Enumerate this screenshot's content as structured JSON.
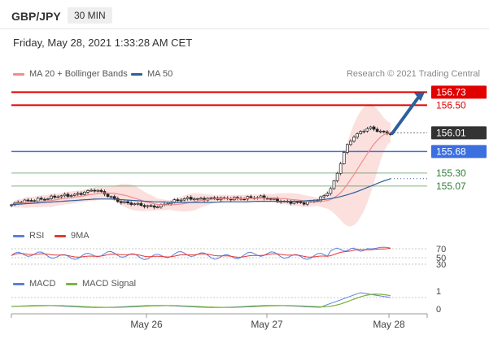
{
  "header": {
    "symbol": "GBP/JPY",
    "timeframe": "30 MIN",
    "datetime": "Friday, May 28, 2021 1:33:28 AM CET"
  },
  "legend": {
    "ma20": {
      "label": "MA 20 + Bollinger Bands",
      "color": "#f28c8c"
    },
    "ma50": {
      "label": "MA 50",
      "color": "#2d5f9e"
    }
  },
  "credit": "Research © 2021 Trading Central",
  "panels": {
    "rsi": {
      "legend": [
        {
          "label": "RSI",
          "color": "#5b7fdb"
        },
        {
          "label": "9MA",
          "color": "#e53935"
        }
      ],
      "levels": [
        "70",
        "50",
        "30"
      ]
    },
    "macd": {
      "legend": [
        {
          "label": "MACD",
          "color": "#5b7fdb"
        },
        {
          "label": "MACD Signal",
          "color": "#7cb342"
        }
      ],
      "levels": [
        "1",
        "0"
      ]
    }
  },
  "colors": {
    "resistance": "#e00000",
    "pivot": "#3b6fe0",
    "support": "#2e7d32",
    "arrow": "#2d5f9e",
    "current_price_bg": "#333333",
    "bands_fill": "#fadbd8"
  },
  "chart_data": {
    "type": "candlestick",
    "x_ticks": [
      "May 26",
      "May 27",
      "May 28"
    ],
    "ylim": [
      154.55,
      156.85
    ],
    "current_price": "156.01",
    "levels": [
      {
        "price": 156.73,
        "label": "156.73",
        "kind": "resistance",
        "highlight": true
      },
      {
        "price": 156.5,
        "label": "156.50",
        "kind": "resistance"
      },
      {
        "price": 155.68,
        "label": "155.68",
        "kind": "pivot",
        "highlight": true
      },
      {
        "price": 155.3,
        "label": "155.30",
        "kind": "support"
      },
      {
        "price": 155.07,
        "label": "155.07",
        "kind": "support"
      }
    ],
    "close_series": [
      154.73,
      154.76,
      154.79,
      154.8,
      154.82,
      154.84,
      154.85,
      154.86,
      154.87,
      154.88,
      154.89,
      154.9,
      154.92,
      154.94,
      154.97,
      154.98,
      155.0,
      154.96,
      154.92,
      154.88,
      154.84,
      154.8,
      154.78,
      154.76,
      154.74,
      154.72,
      154.71,
      154.71,
      154.72,
      154.74,
      154.77,
      154.79,
      154.81,
      154.83,
      154.85,
      154.86,
      154.85,
      154.85,
      154.85,
      154.84,
      154.84,
      154.84,
      154.85,
      154.86,
      154.86,
      154.86,
      154.86,
      154.86,
      154.86,
      154.86,
      154.85,
      154.83,
      154.81,
      154.79,
      154.78,
      154.77,
      154.76,
      154.78,
      154.81,
      154.84,
      154.89,
      154.96,
      155.1,
      155.35,
      155.65,
      155.85,
      155.96,
      156.02,
      156.07,
      156.1,
      156.05,
      156.03,
      156.0,
      156.01
    ],
    "ma50_series": [
      154.74,
      154.75,
      154.76,
      154.77,
      154.78,
      154.79,
      154.8,
      154.81,
      154.82,
      154.83,
      154.84,
      154.84,
      154.84,
      154.83,
      154.82,
      154.81,
      154.8,
      154.79,
      154.79,
      154.78,
      154.78,
      154.78,
      154.78,
      154.78,
      154.78,
      154.79,
      154.79,
      154.79,
      154.79,
      154.8,
      154.8,
      154.8,
      154.8,
      154.8,
      154.8,
      154.81,
      154.82,
      154.83,
      154.85,
      154.88,
      154.92,
      154.97,
      155.03,
      155.09,
      155.15,
      155.2
    ],
    "arrow": {
      "from_price": 156.0,
      "to_price": 156.73
    }
  }
}
